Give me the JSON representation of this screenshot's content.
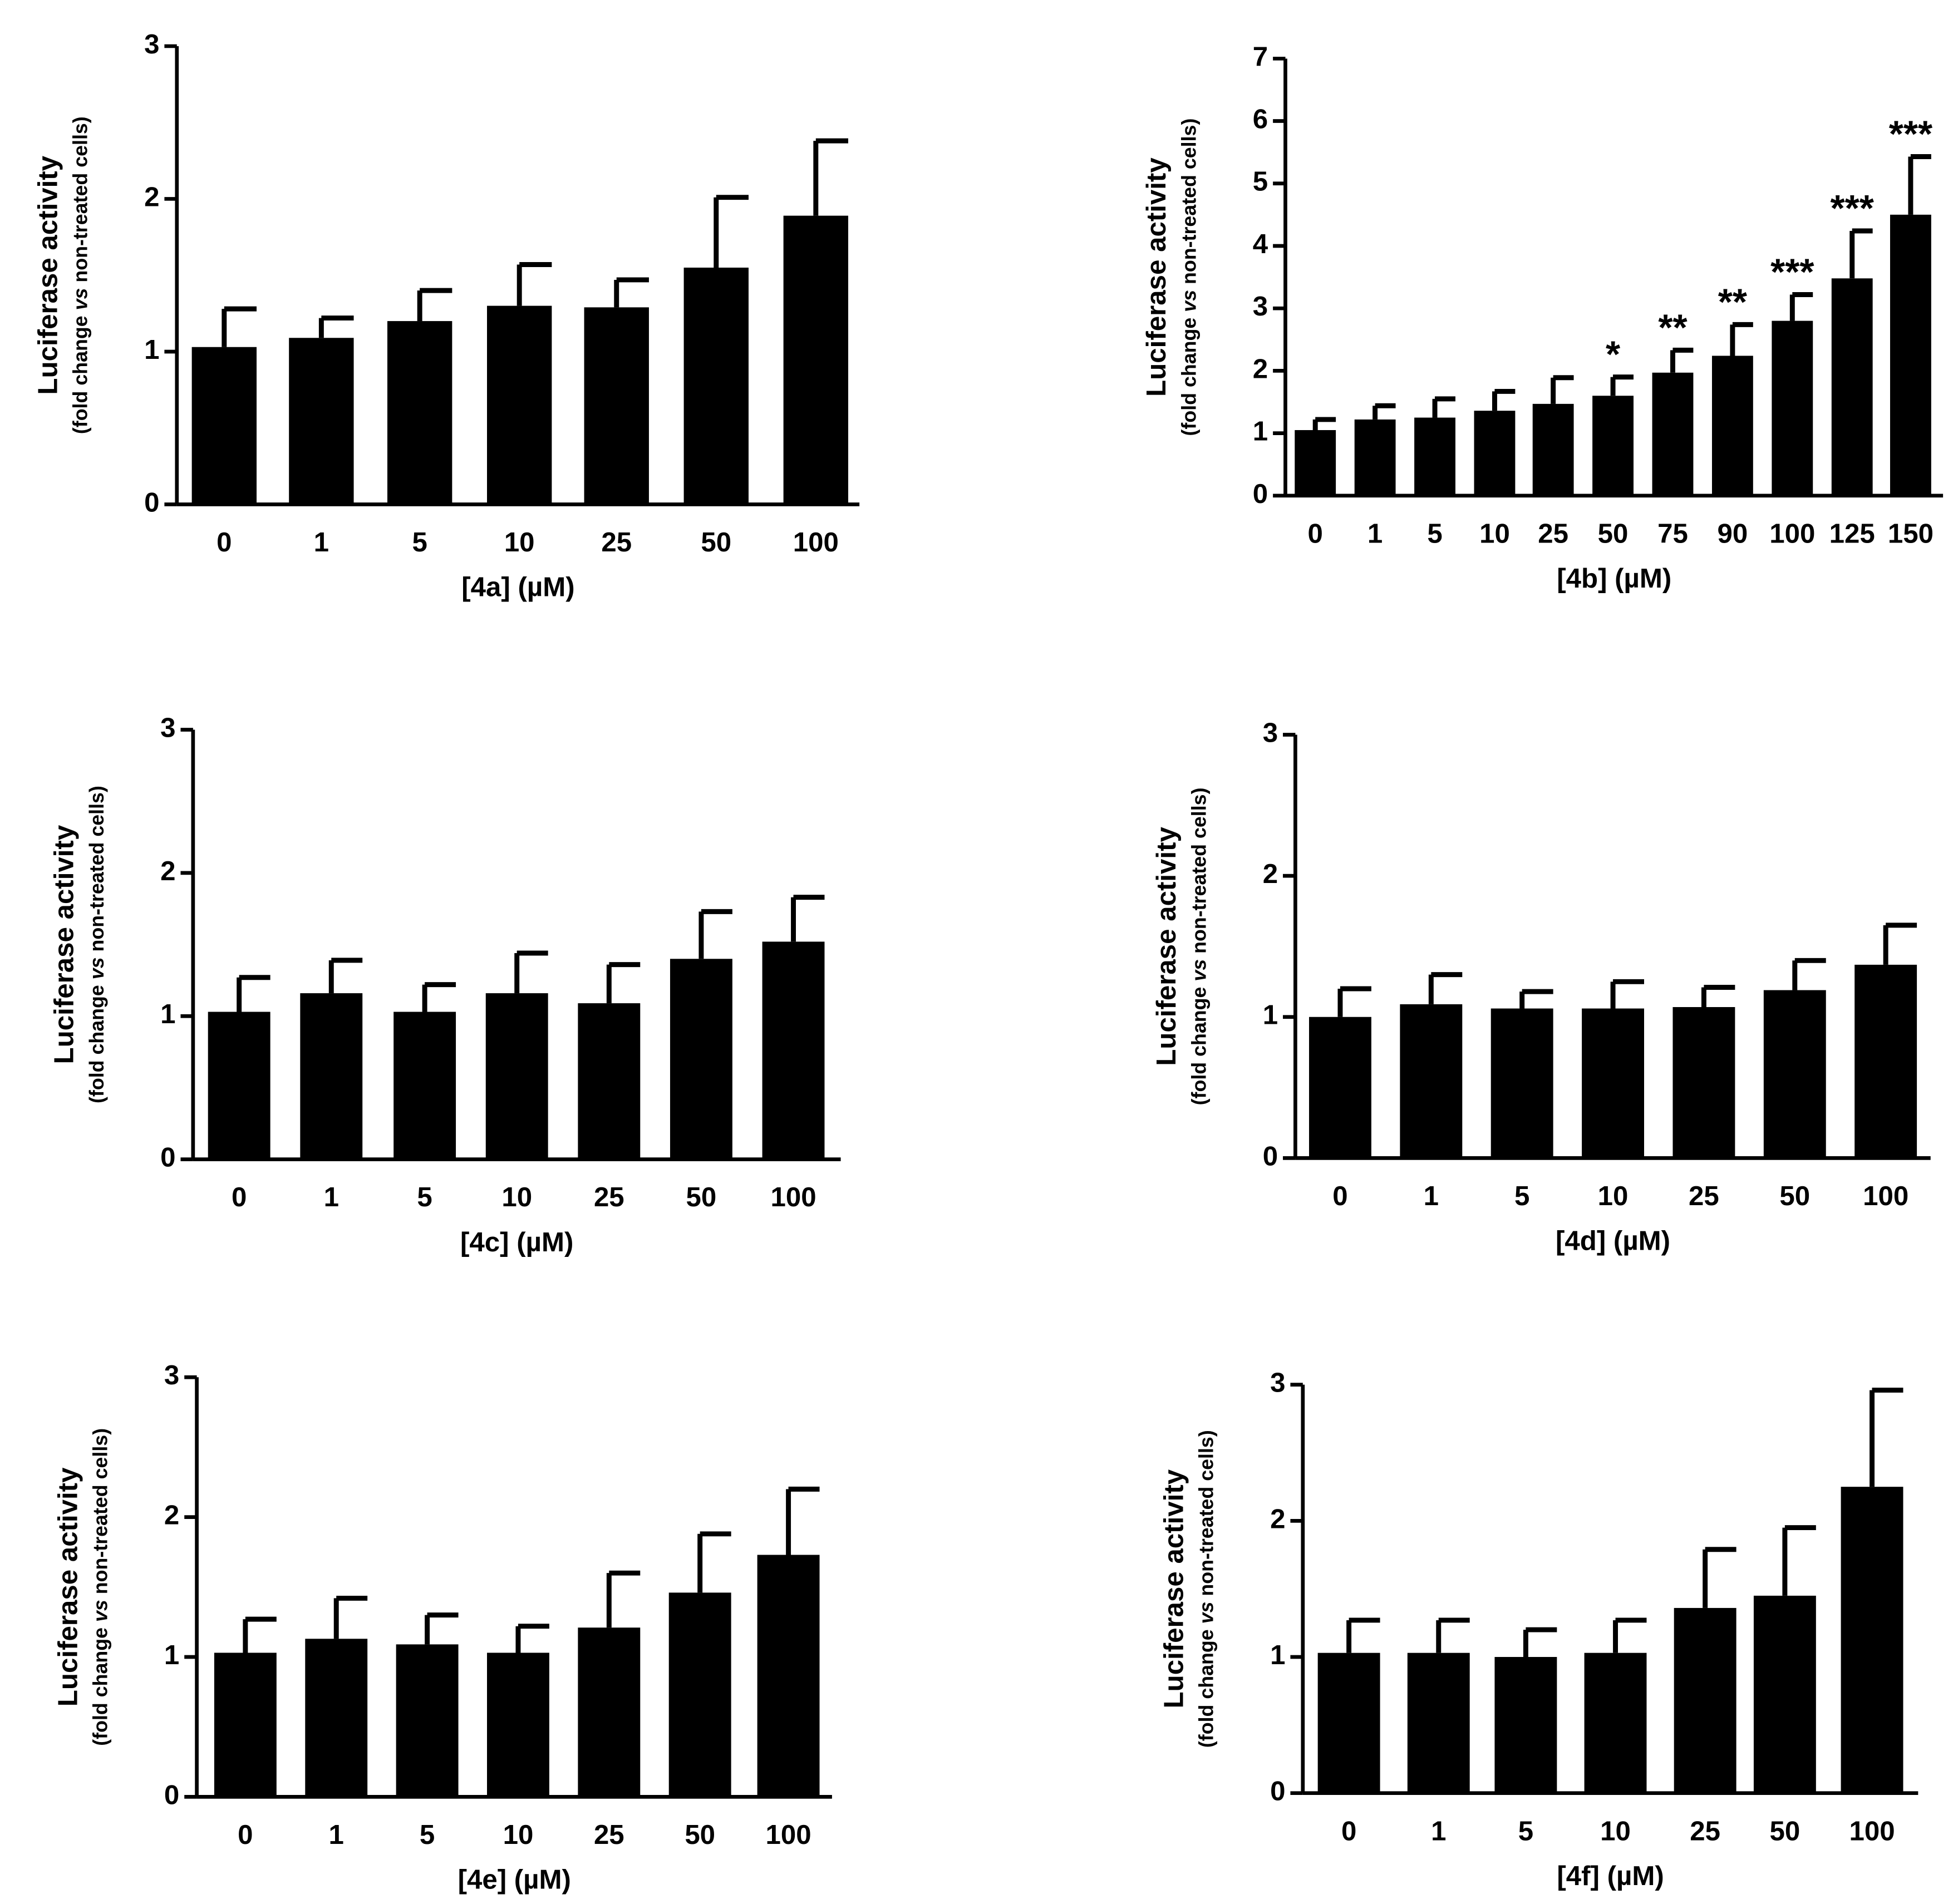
{
  "chart_data": [
    {
      "type": "bar",
      "x_label": "[4a] (µM)",
      "y_label": "Luciferase activity",
      "y_label_sub": [
        "(fold change ",
        "vs",
        " non-treated cells)"
      ],
      "categories": [
        "0",
        "1",
        "5",
        "10",
        "25",
        "50",
        "100"
      ],
      "values": [
        1.03,
        1.09,
        1.2,
        1.3,
        1.29,
        1.55,
        1.89
      ],
      "errors": [
        0.25,
        0.13,
        0.2,
        0.27,
        0.18,
        0.46,
        0.49
      ],
      "color": "#000000",
      "ylim": [
        0,
        3
      ],
      "yticks": [
        0,
        1,
        2,
        3
      ]
    },
    {
      "type": "bar",
      "x_label": "[4b] (µM)",
      "y_label": "Luciferase activity",
      "y_label_sub": [
        "(fold change ",
        "vs",
        " non-treated cells)"
      ],
      "categories": [
        "0",
        "1",
        "5",
        "10",
        "25",
        "50",
        "75",
        "90",
        "100",
        "125",
        "150"
      ],
      "values": [
        1.05,
        1.22,
        1.25,
        1.36,
        1.47,
        1.6,
        1.97,
        2.24,
        2.8,
        3.48,
        4.5
      ],
      "errors": [
        0.17,
        0.22,
        0.3,
        0.31,
        0.42,
        0.3,
        0.36,
        0.5,
        0.42,
        0.76,
        0.93
      ],
      "annotations": [
        null,
        null,
        null,
        null,
        null,
        "*",
        "**",
        "**",
        "***",
        "***",
        "***"
      ],
      "color": "#000000",
      "ylim": [
        0,
        7
      ],
      "yticks": [
        0,
        1,
        2,
        3,
        4,
        5,
        6,
        7
      ]
    },
    {
      "type": "bar",
      "x_label": "[4c] (µM)",
      "y_label": "Luciferase activity",
      "y_label_sub": [
        "(fold change ",
        "vs",
        " non-treated cells)"
      ],
      "categories": [
        "0",
        "1",
        "5",
        "10",
        "25",
        "50",
        "100"
      ],
      "values": [
        1.03,
        1.16,
        1.03,
        1.16,
        1.09,
        1.4,
        1.52
      ],
      "errors": [
        0.24,
        0.23,
        0.19,
        0.28,
        0.27,
        0.33,
        0.31
      ],
      "color": "#000000",
      "ylim": [
        0,
        3
      ],
      "yticks": [
        0,
        1,
        2,
        3
      ]
    },
    {
      "type": "bar",
      "x_label": "[4d] (µM)",
      "y_label": "Luciferase activity",
      "y_label_sub": [
        "(fold change ",
        "vs",
        " non-treated cells)"
      ],
      "categories": [
        "0",
        "1",
        "5",
        "10",
        "25",
        "50",
        "100"
      ],
      "values": [
        1.0,
        1.09,
        1.06,
        1.06,
        1.07,
        1.19,
        1.37
      ],
      "errors": [
        0.2,
        0.21,
        0.12,
        0.19,
        0.14,
        0.21,
        0.28
      ],
      "color": "#000000",
      "ylim": [
        0,
        3
      ],
      "yticks": [
        0,
        1,
        2,
        3
      ]
    },
    {
      "type": "bar",
      "x_label": "[4e] (µM)",
      "y_label": "Luciferase activity",
      "y_label_sub": [
        "(fold change ",
        "vs",
        " non-treated cells)"
      ],
      "categories": [
        "0",
        "1",
        "5",
        "10",
        "25",
        "50",
        "100"
      ],
      "values": [
        1.03,
        1.13,
        1.09,
        1.03,
        1.21,
        1.46,
        1.73
      ],
      "errors": [
        0.24,
        0.29,
        0.21,
        0.19,
        0.39,
        0.42,
        0.47
      ],
      "color": "#000000",
      "ylim": [
        0,
        3
      ],
      "yticks": [
        0,
        1,
        2,
        3
      ]
    },
    {
      "type": "bar",
      "x_label": "[4f] (µM)",
      "y_label": "Luciferase activity",
      "y_label_sub": [
        "(fold change ",
        "vs",
        " non-treated cells)"
      ],
      "categories": [
        "0",
        "1",
        "5",
        "10",
        "25",
        "50",
        "100"
      ],
      "values": [
        1.03,
        1.03,
        1.0,
        1.03,
        1.36,
        1.45,
        2.25
      ],
      "errors": [
        0.24,
        0.24,
        0.2,
        0.24,
        0.43,
        0.5,
        0.71
      ],
      "color": "#000000",
      "ylim": [
        0,
        3
      ],
      "yticks": [
        0,
        1,
        2,
        3
      ]
    }
  ]
}
